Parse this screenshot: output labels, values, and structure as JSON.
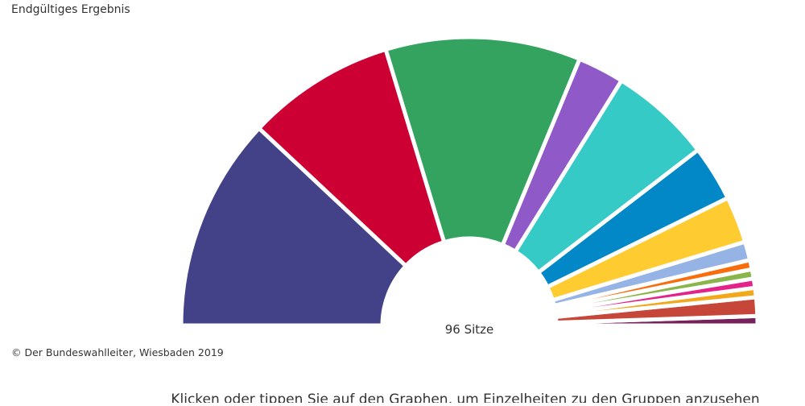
{
  "chart_data": {
    "type": "parliament",
    "title": "Endgültiges Ergebnis",
    "center_label": "96 Sitze",
    "source": "© Der Bundeswahlleiter, Wiesbaden 2019",
    "hint": "Klicken oder tippen Sie auf den Graphen, um Einzelheiten zu den Gruppen anzusehen",
    "values": [
      23,
      16,
      21,
      5,
      11,
      6,
      5,
      2,
      1,
      1,
      1,
      1,
      2,
      1
    ],
    "colors": [
      "#434187",
      "#cc0033",
      "#33a35f",
      "#9059c8",
      "#36cac6",
      "#0288c7",
      "#fecb31",
      "#95b4e5",
      "#fa6d0c",
      "#8ab54a",
      "#e4238a",
      "#f3a71b",
      "#c6463a",
      "#76205c"
    ]
  }
}
